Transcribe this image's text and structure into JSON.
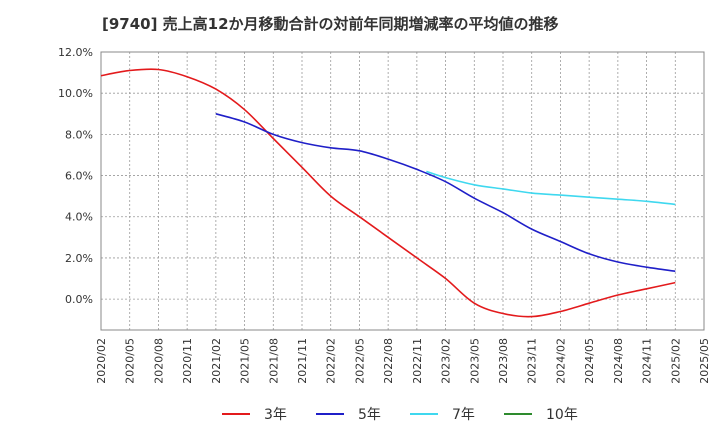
{
  "chart_data": {
    "type": "line",
    "title": "[9740]  売上高12か月移動合計の対前年同期増減率の平均値の推移",
    "xlabel": "",
    "ylabel": "",
    "ylim": [
      -1.5,
      12.0
    ],
    "yticks": [
      0,
      2,
      4,
      6,
      8,
      10,
      12
    ],
    "ytick_labels": [
      "0.0%",
      "2.0%",
      "4.0%",
      "6.0%",
      "8.0%",
      "10.0%",
      "12.0%"
    ],
    "xticks": [
      "2020/02",
      "2020/05",
      "2020/08",
      "2020/11",
      "2021/02",
      "2021/05",
      "2021/08",
      "2021/11",
      "2022/02",
      "2022/05",
      "2022/08",
      "2022/11",
      "2023/02",
      "2023/05",
      "2023/08",
      "2023/11",
      "2024/02",
      "2024/05",
      "2024/08",
      "2024/11",
      "2025/02",
      "2025/05"
    ],
    "grid": true,
    "legend_position": "bottom",
    "x_start": "2020/02",
    "series": [
      {
        "name": "3年",
        "color": "#e31a1c",
        "points": [
          [
            "2020/02",
            10.85
          ],
          [
            "2020/05",
            11.1
          ],
          [
            "2020/08",
            11.15
          ],
          [
            "2020/11",
            10.8
          ],
          [
            "2021/02",
            10.2
          ],
          [
            "2021/05",
            9.2
          ],
          [
            "2021/08",
            7.8
          ],
          [
            "2021/11",
            6.4
          ],
          [
            "2022/02",
            5.0
          ],
          [
            "2022/05",
            4.0
          ],
          [
            "2022/08",
            3.0
          ],
          [
            "2022/11",
            2.0
          ],
          [
            "2023/02",
            1.0
          ],
          [
            "2023/05",
            -0.2
          ],
          [
            "2023/08",
            -0.7
          ],
          [
            "2023/11",
            -0.85
          ],
          [
            "2024/02",
            -0.6
          ],
          [
            "2024/05",
            -0.2
          ],
          [
            "2024/08",
            0.2
          ],
          [
            "2024/11",
            0.5
          ],
          [
            "2025/02",
            0.8
          ]
        ]
      },
      {
        "name": "5年",
        "color": "#1f1fc8",
        "points": [
          [
            "2021/02",
            9.0
          ],
          [
            "2021/05",
            8.6
          ],
          [
            "2021/08",
            8.0
          ],
          [
            "2021/11",
            7.6
          ],
          [
            "2022/02",
            7.35
          ],
          [
            "2022/05",
            7.2
          ],
          [
            "2022/08",
            6.8
          ],
          [
            "2022/11",
            6.3
          ],
          [
            "2023/02",
            5.7
          ],
          [
            "2023/05",
            4.9
          ],
          [
            "2023/08",
            4.2
          ],
          [
            "2023/11",
            3.4
          ],
          [
            "2024/02",
            2.8
          ],
          [
            "2024/05",
            2.2
          ],
          [
            "2024/08",
            1.8
          ],
          [
            "2024/11",
            1.55
          ],
          [
            "2025/02",
            1.35
          ]
        ]
      },
      {
        "name": "7年",
        "color": "#3fd8ef",
        "points": [
          [
            "2022/12",
            6.2
          ],
          [
            "2023/02",
            5.9
          ],
          [
            "2023/05",
            5.55
          ],
          [
            "2023/08",
            5.35
          ],
          [
            "2023/11",
            5.15
          ],
          [
            "2024/02",
            5.05
          ],
          [
            "2024/05",
            4.95
          ],
          [
            "2024/08",
            4.85
          ],
          [
            "2024/11",
            4.75
          ],
          [
            "2025/02",
            4.6
          ]
        ]
      },
      {
        "name": "10年",
        "color": "#2e8b2e",
        "points": []
      }
    ]
  }
}
